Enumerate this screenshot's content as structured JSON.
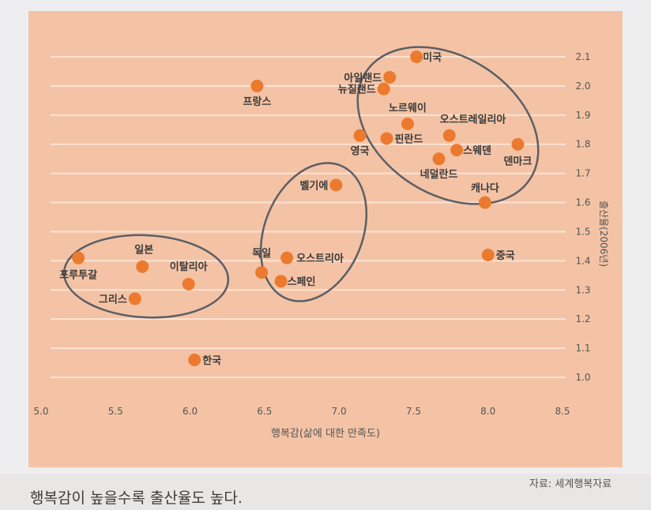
{
  "caption": "행복감이 높을수록 출산율도 높다.",
  "source": "자료: 세계행복자료",
  "colors": {
    "background": "#f4c3a5",
    "point": "#ec7a2e",
    "ellipse": "#5b5f66",
    "grid": "#fbe3d4"
  },
  "chart_data": {
    "type": "scatter",
    "xlabel": "행복감(삶에 대한 만족도)",
    "ylabel": "출산율(2006년)",
    "xlim": [
      5.0,
      8.5
    ],
    "ylim": [
      1.0,
      2.1
    ],
    "x_ticks": [
      "5.0",
      "5.5",
      "6.0",
      "6.5",
      "7.0",
      "7.5",
      "8.0",
      "8.5"
    ],
    "y_ticks": [
      "1.0",
      "1.1",
      "1.2",
      "1.3",
      "1.4",
      "1.5",
      "1.6",
      "1.7",
      "1.8",
      "1.9",
      "2.0",
      "2.1"
    ],
    "grid": true,
    "points": [
      {
        "label": "미국",
        "x": 7.52,
        "y": 2.1
      },
      {
        "label": "아일랜드",
        "x": 7.34,
        "y": 2.03
      },
      {
        "label": "뉴질랜드",
        "x": 7.3,
        "y": 1.99
      },
      {
        "label": "프랑스",
        "x": 6.45,
        "y": 2.0
      },
      {
        "label": "노르웨이",
        "x": 7.46,
        "y": 1.87
      },
      {
        "label": "오스트레일리아",
        "x": 7.74,
        "y": 1.83
      },
      {
        "label": "영국",
        "x": 7.14,
        "y": 1.83
      },
      {
        "label": "핀란드",
        "x": 7.32,
        "y": 1.82
      },
      {
        "label": "스웨덴",
        "x": 7.79,
        "y": 1.78
      },
      {
        "label": "덴마크",
        "x": 8.2,
        "y": 1.8
      },
      {
        "label": "네덜란드",
        "x": 7.67,
        "y": 1.75
      },
      {
        "label": "캐나다",
        "x": 7.98,
        "y": 1.6
      },
      {
        "label": "벨기에",
        "x": 6.98,
        "y": 1.66
      },
      {
        "label": "중국",
        "x": 8.0,
        "y": 1.42
      },
      {
        "label": "독일",
        "x": 6.48,
        "y": 1.36
      },
      {
        "label": "오스트리아",
        "x": 6.65,
        "y": 1.41
      },
      {
        "label": "스페인",
        "x": 6.61,
        "y": 1.33
      },
      {
        "label": "포루투갈",
        "x": 5.25,
        "y": 1.41
      },
      {
        "label": "일본",
        "x": 5.68,
        "y": 1.38
      },
      {
        "label": "이탈리아",
        "x": 5.99,
        "y": 1.32
      },
      {
        "label": "그리스",
        "x": 5.63,
        "y": 1.27
      },
      {
        "label": "한국",
        "x": 6.03,
        "y": 1.06
      }
    ]
  }
}
